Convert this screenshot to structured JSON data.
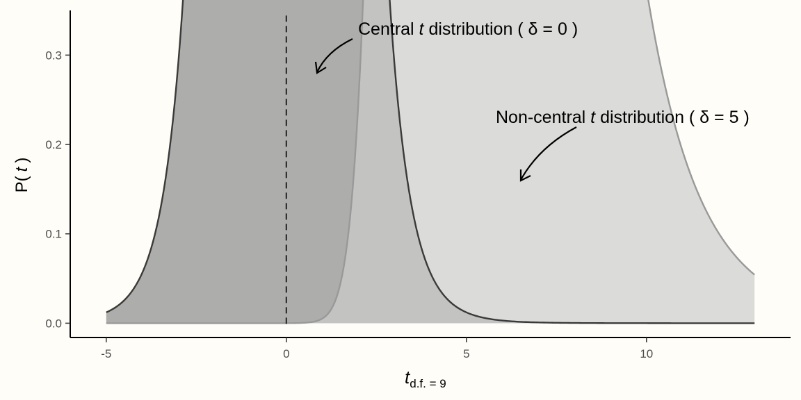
{
  "chart_data": {
    "type": "area",
    "x_range": [
      -5,
      13
    ],
    "xlim": [
      -6,
      14
    ],
    "ylim": [
      -0.016,
      0.35
    ],
    "x_ticks": [
      -5,
      0,
      5,
      10
    ],
    "x_tick_labels": [
      "-5",
      "0",
      "5",
      "10"
    ],
    "y_ticks": [
      0.0,
      0.1,
      0.2,
      0.3
    ],
    "y_tick_labels": [
      "0.0",
      "0.1",
      "0.2",
      "0.3"
    ],
    "xlabel": {
      "main": "t",
      "subscript": "d.f. = 9"
    },
    "ylabel": {
      "prefix": "P(",
      "var": "t",
      "suffix": ")"
    },
    "grid": false,
    "reference_line": {
      "x": 0,
      "style": "dashed"
    },
    "series": [
      {
        "df": 9,
        "delta": 0,
        "fill": "#999999",
        "fill_opacity": 0.8,
        "line_color": "#3a3a3a",
        "annotation": {
          "pre": "Central ",
          "var": "t",
          "post": " distribution ( δ = 0 )"
        }
      },
      {
        "df": 9,
        "delta": 5,
        "fill": "#cccccc",
        "fill_opacity": 0.7,
        "line_color": "#999999",
        "annotation": {
          "pre": "Non-central ",
          "var": "t",
          "post": " distribution ( δ = 5 )"
        }
      }
    ]
  },
  "colors": {
    "background": "#fffdf7",
    "axis": "#000000",
    "tick_label": "#4d4d4d"
  }
}
